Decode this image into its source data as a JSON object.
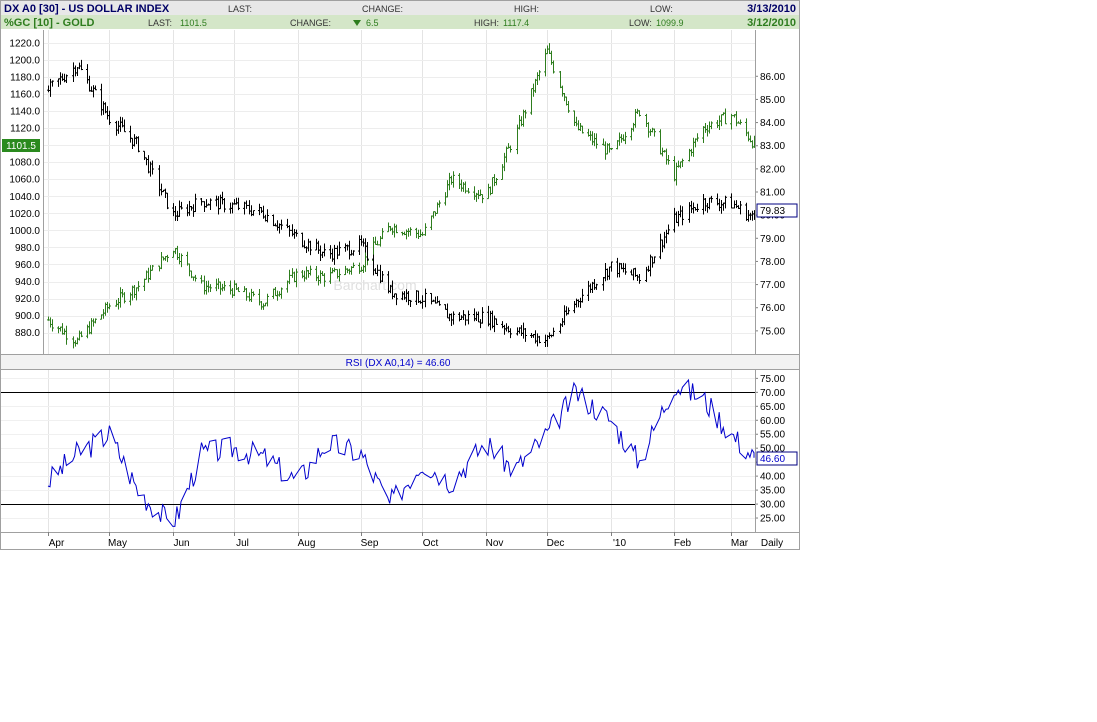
{
  "header": {
    "row1": {
      "symbol": "DX A0 [30] - US DOLLAR INDEX",
      "last_label": "LAST:",
      "last_value": "",
      "change_label": "CHANGE:",
      "change_value": "",
      "high_label": "HIGH:",
      "high_value": "",
      "low_label": "LOW:",
      "low_value": "",
      "date": "3/13/2010"
    },
    "row2": {
      "symbol": "%GC [10] - GOLD",
      "last_label": "LAST:",
      "last_value": "1101.5",
      "change_label": "CHANGE:",
      "change_arrow": "down-triangle-icon",
      "change_value": "6.5",
      "high_label": "HIGH:",
      "high_value": "1117.4",
      "low_label": "LOW:",
      "low_value": "1099.9",
      "date": "3/12/2010"
    }
  },
  "colors": {
    "gold": "#2e7d1e",
    "dollar": "#000000",
    "rsi": "#0000cc",
    "header_bg1": "#e8e8e8",
    "header_bg2": "#d4e6c8",
    "gold_badge_bg": "#2a8a1e",
    "symbol_text": "#000066"
  },
  "chart_data": [
    {
      "type": "line",
      "price_style": "ohlc-bars",
      "frequency": "Daily",
      "x_ticks": [
        "Apr",
        "May",
        "Jun",
        "Jul",
        "Aug",
        "Sep",
        "Oct",
        "Nov",
        "Dec",
        "'10",
        "Feb",
        "Mar"
      ],
      "series": [
        {
          "name": "%GC [10] - GOLD",
          "axis": "left",
          "x": [
            "2009-04-01",
            "2009-04-15",
            "2009-05-01",
            "2009-05-15",
            "2009-06-01",
            "2009-06-15",
            "2009-07-01",
            "2009-07-15",
            "2009-08-01",
            "2009-08-15",
            "2009-09-01",
            "2009-09-15",
            "2009-10-01",
            "2009-10-15",
            "2009-11-01",
            "2009-11-15",
            "2009-12-01",
            "2009-12-15",
            "2010-01-01",
            "2010-01-15",
            "2010-02-01",
            "2010-02-15",
            "2010-03-01",
            "2010-03-12"
          ],
          "values": [
            895,
            870,
            912,
            935,
            980,
            935,
            930,
            915,
            950,
            945,
            960,
            1005,
            995,
            1060,
            1040,
            1110,
            1210,
            1120,
            1090,
            1140,
            1065,
            1120,
            1135,
            1101.5
          ]
        },
        {
          "name": "DX A0 [30] - US DOLLAR INDEX",
          "axis": "right",
          "x": [
            "2009-04-01",
            "2009-04-15",
            "2009-05-01",
            "2009-05-15",
            "2009-06-01",
            "2009-06-15",
            "2009-07-01",
            "2009-07-15",
            "2009-08-01",
            "2009-08-15",
            "2009-09-01",
            "2009-09-15",
            "2009-10-01",
            "2009-10-15",
            "2009-11-01",
            "2009-11-15",
            "2009-12-01",
            "2009-12-15",
            "2010-01-01",
            "2010-01-15",
            "2010-02-01",
            "2010-02-15",
            "2010-03-01",
            "2010-03-12"
          ],
          "values": [
            85.4,
            86.5,
            84.2,
            83.0,
            80.0,
            80.6,
            80.4,
            80.1,
            79.0,
            78.3,
            78.7,
            76.7,
            76.4,
            75.6,
            75.6,
            75.0,
            74.6,
            76.3,
            77.8,
            77.3,
            79.8,
            80.6,
            80.5,
            79.83
          ]
        }
      ],
      "y_left_ticks": [
        880,
        900,
        920,
        940,
        960,
        980,
        1000,
        1020,
        1040,
        1060,
        1080,
        1100,
        1120,
        1140,
        1160,
        1180,
        1200,
        1220
      ],
      "y_left_range": [
        855,
        1235
      ],
      "y_right_ticks": [
        75.0,
        76.0,
        77.0,
        78.0,
        79.0,
        80.0,
        81.0,
        82.0,
        83.0,
        84.0,
        85.0,
        86.0
      ],
      "y_right_range": [
        74.0,
        88.0
      ],
      "last_value_badges": {
        "gold": "1101.5",
        "dollar": "79.83"
      },
      "watermark": "Barchart.com"
    },
    {
      "type": "line",
      "title": "RSI (DX A0,14) = 46.60",
      "series": [
        {
          "name": "RSI",
          "x": [
            "2009-04-01",
            "2009-04-15",
            "2009-05-01",
            "2009-05-15",
            "2009-06-01",
            "2009-06-15",
            "2009-07-01",
            "2009-07-15",
            "2009-08-01",
            "2009-08-15",
            "2009-09-01",
            "2009-09-15",
            "2009-10-01",
            "2009-10-15",
            "2009-11-01",
            "2009-11-15",
            "2009-12-01",
            "2009-12-15",
            "2010-01-01",
            "2010-01-15",
            "2010-02-01",
            "2010-02-15",
            "2010-03-01",
            "2010-03-12"
          ],
          "values": [
            38,
            48,
            55,
            35,
            22,
            48,
            50,
            47,
            38,
            52,
            48,
            30,
            45,
            38,
            52,
            42,
            55,
            70,
            60,
            45,
            73,
            68,
            55,
            46.6
          ]
        }
      ],
      "reference_lines": [
        30,
        70
      ],
      "y_ticks": [
        25.0,
        30.0,
        35.0,
        40.0,
        45.0,
        50.0,
        55.0,
        60.0,
        65.0,
        70.0,
        75.0
      ],
      "y_range": [
        20,
        78
      ],
      "last_value_badge": "46.60",
      "period_label": "Daily"
    }
  ]
}
